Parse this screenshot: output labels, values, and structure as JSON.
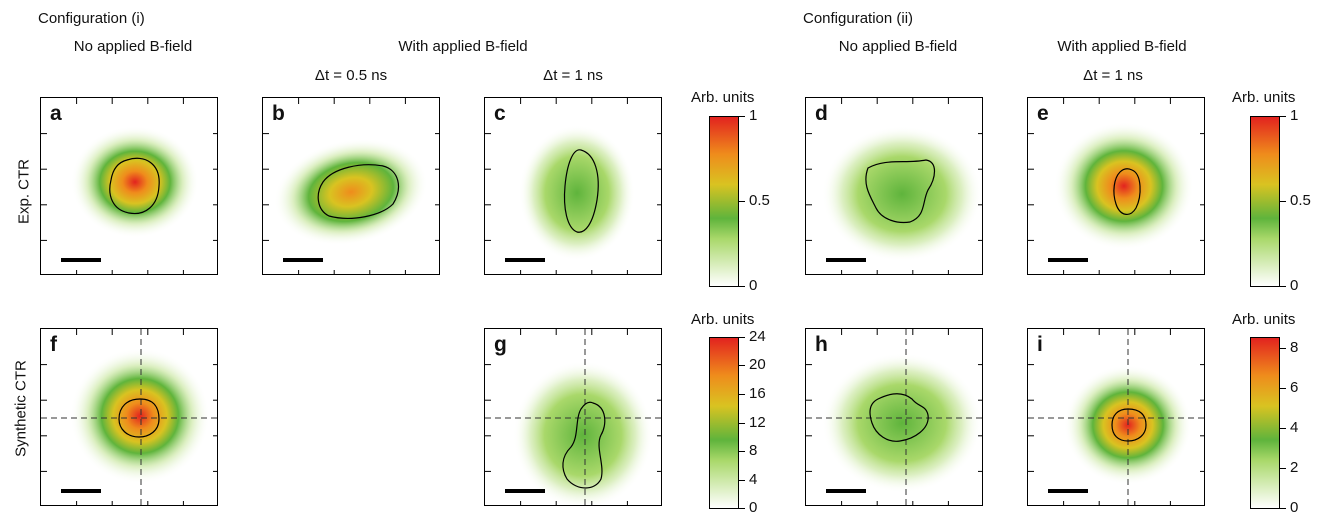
{
  "header": {
    "config_i": "Configuration (i)",
    "config_ii": "Configuration (ii)",
    "no_b_i": "No applied B-field",
    "with_b_i": "With applied B-field",
    "no_b_ii": "No applied B-field",
    "with_b_ii": "With applied B-field",
    "dt_b": "Δt = 0.5 ns",
    "dt_c": "Δt = 1 ns",
    "dt_e": "Δt = 1 ns"
  },
  "row_labels": {
    "top": "Exp. CTR",
    "bottom": "Synthetic CTR"
  },
  "panels": {
    "a": "a",
    "b": "b",
    "c": "c",
    "d": "d",
    "e": "e",
    "f": "f",
    "g": "g",
    "h": "h",
    "i": "i"
  },
  "colors": {
    "green": "#5fb43c",
    "yellow": "#d9c321",
    "orange": "#ef8c1c",
    "red": "#e2231f"
  },
  "chart_data": [
    {
      "type": "heatmap",
      "panel": "a",
      "config": "Configuration (i)",
      "condition": "No applied B-field",
      "row": "Exp. CTR",
      "peak_relative": 0.9
    },
    {
      "type": "heatmap",
      "panel": "b",
      "config": "Configuration (i)",
      "condition": "With applied B-field",
      "time": "Δt = 0.5 ns",
      "row": "Exp. CTR",
      "peak_relative": 0.62
    },
    {
      "type": "heatmap",
      "panel": "c",
      "config": "Configuration (i)",
      "condition": "With applied B-field",
      "time": "Δt = 1 ns",
      "row": "Exp. CTR",
      "peak_relative": 0.3
    },
    {
      "type": "heatmap",
      "panel": "d",
      "config": "Configuration (ii)",
      "condition": "No applied B-field",
      "row": "Exp. CTR",
      "peak_relative": 0.3
    },
    {
      "type": "heatmap",
      "panel": "e",
      "config": "Configuration (ii)",
      "condition": "With applied B-field",
      "time": "Δt = 1 ns",
      "row": "Exp. CTR",
      "peak_relative": 0.95
    },
    {
      "type": "heatmap",
      "panel": "f",
      "config": "Configuration (i)",
      "condition": "No applied B-field",
      "row": "Synthetic CTR",
      "peak_relative": 0.95
    },
    {
      "type": "heatmap",
      "panel": "g",
      "config": "Configuration (i)",
      "condition": "With applied B-field",
      "time": "Δt = 1 ns",
      "row": "Synthetic CTR",
      "peak_relative": 0.3
    },
    {
      "type": "heatmap",
      "panel": "h",
      "config": "Configuration (ii)",
      "condition": "No applied B-field",
      "row": "Synthetic CTR",
      "peak_relative": 0.3
    },
    {
      "type": "heatmap",
      "panel": "i",
      "config": "Configuration (ii)",
      "condition": "With applied B-field",
      "time": "Δt = 1 ns",
      "row": "Synthetic CTR",
      "peak_relative": 0.92
    }
  ],
  "colorbars": [
    {
      "id": "cb1",
      "unit": "Arb. units",
      "ticks": [
        "1",
        "0.5",
        "0"
      ],
      "range": [
        0,
        1
      ]
    },
    {
      "id": "cb2",
      "unit": "Arb. units",
      "ticks": [
        "24",
        "20",
        "16",
        "12",
        "8",
        "4",
        "0"
      ],
      "range": [
        0,
        24
      ]
    },
    {
      "id": "cb3",
      "unit": "Arb. units",
      "ticks": [
        "1",
        "0.5",
        "0"
      ],
      "range": [
        0,
        1
      ]
    },
    {
      "id": "cb4",
      "unit": "Arb. units",
      "ticks": [
        "8",
        "6",
        "4",
        "2",
        "0"
      ],
      "range": [
        0,
        8.7
      ]
    }
  ]
}
